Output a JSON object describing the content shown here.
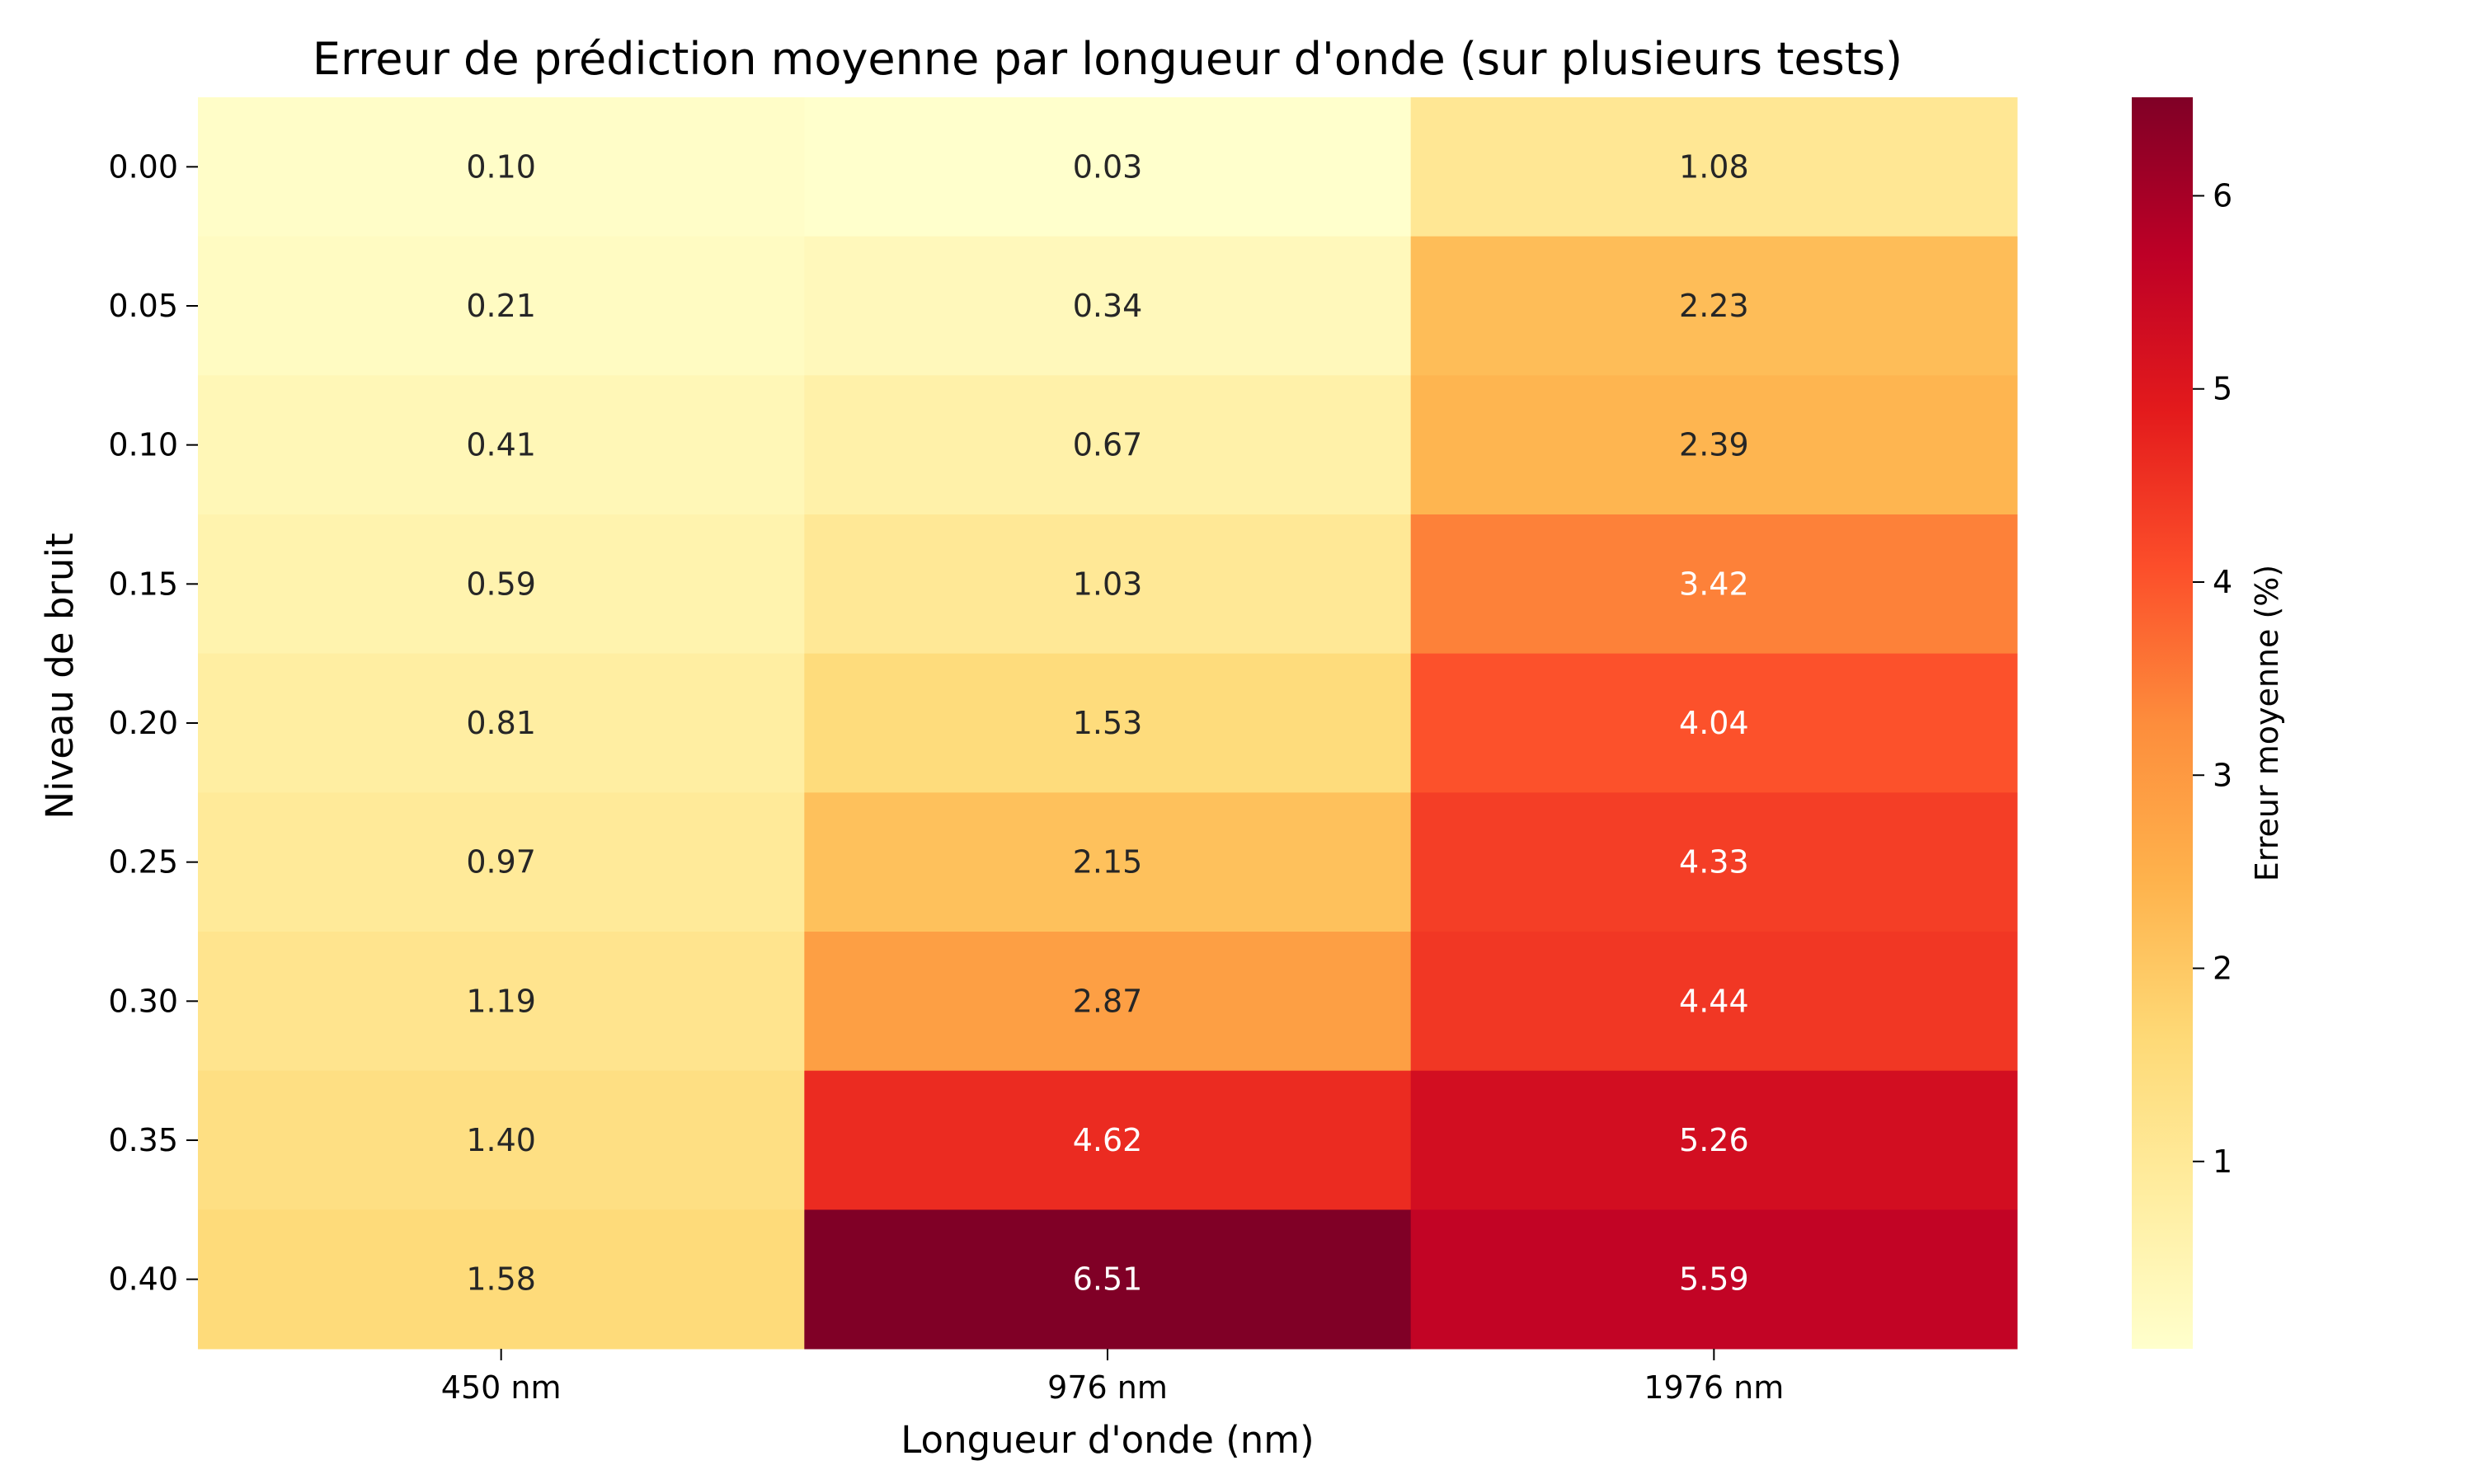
{
  "chart_data": {
    "type": "heatmap",
    "title": "Erreur de prédiction moyenne par longueur d'onde (sur plusieurs tests)",
    "xlabel": "Longueur d'onde (nm)",
    "ylabel": "Niveau de bruit",
    "x_categories": [
      "450 nm",
      "976 nm",
      "1976 nm"
    ],
    "y_categories": [
      "0.00",
      "0.05",
      "0.10",
      "0.15",
      "0.20",
      "0.25",
      "0.30",
      "0.35",
      "0.40"
    ],
    "values": [
      [
        0.1,
        0.03,
        1.08
      ],
      [
        0.21,
        0.34,
        2.23
      ],
      [
        0.41,
        0.67,
        2.39
      ],
      [
        0.59,
        1.03,
        3.42
      ],
      [
        0.81,
        1.53,
        4.04
      ],
      [
        0.97,
        2.15,
        4.33
      ],
      [
        1.19,
        2.87,
        4.44
      ],
      [
        1.4,
        4.62,
        5.26
      ],
      [
        1.58,
        6.51,
        5.59
      ]
    ],
    "colormap": "YlOrRd",
    "colorbar": {
      "label": "Erreur moyenne (%)",
      "min": 0.03,
      "max": 6.51,
      "ticks": [
        "1",
        "2",
        "3",
        "4",
        "5",
        "6"
      ]
    },
    "annotation_format": "%.2f",
    "grid": false
  }
}
